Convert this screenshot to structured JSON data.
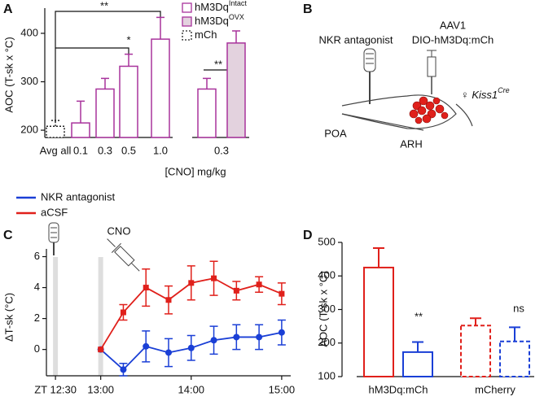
{
  "panel_labels": [
    "A",
    "B",
    "C",
    "D"
  ],
  "chart_data": [
    {
      "type": "bar",
      "ylabel": "AOC (T-sk x °C)",
      "xlabel": "[CNO] mg/kg",
      "categories": [
        "Avg all",
        "0.1",
        "0.3",
        "0.5",
        "1.0",
        "0.3"
      ],
      "series": [
        {
          "name": "hM3Dq",
          "name_sup": "Intact",
          "color": "#a8339c",
          "fill": "#ffffff",
          "values": [
            null,
            215,
            285,
            332,
            388,
            285
          ],
          "errors": [
            null,
            45,
            22,
            25,
            45,
            22
          ]
        },
        {
          "name": "hM3Dq",
          "name_sup": "OVX",
          "color": "#a8339c",
          "fill": "#e3d2de",
          "values": [
            null,
            null,
            null,
            null,
            null,
            380
          ],
          "errors": [
            null,
            null,
            null,
            null,
            null,
            25
          ]
        },
        {
          "name": "mCh",
          "color": "#222222",
          "fill": "#ffffff",
          "dashed": true,
          "values": [
            208,
            null,
            null,
            null,
            null,
            null
          ],
          "errors": [
            12,
            null,
            null,
            null,
            null,
            null
          ]
        }
      ],
      "ylim": [
        185,
        452
      ],
      "yticks": [
        200,
        300,
        400
      ],
      "annotations": [
        "**",
        "*",
        "**"
      ]
    },
    {
      "type": "line",
      "ylabel": "ΔT-sk (°C)",
      "annotations": [
        "CNO"
      ],
      "x": [
        13,
        13.25,
        13.5,
        13.75,
        14,
        14.25,
        14.5,
        14.75,
        15
      ],
      "series": [
        {
          "name": "NKR antagonist",
          "color": "#1a3fd6",
          "marker": "circle",
          "values": [
            0,
            -1.3,
            0.2,
            -0.2,
            0.1,
            0.6,
            0.8,
            0.8,
            1.1
          ],
          "errors": [
            0,
            0.4,
            1.0,
            0.9,
            0.8,
            0.9,
            0.8,
            0.8,
            0.8
          ]
        },
        {
          "name": "aCSF",
          "color": "#e0201b",
          "marker": "square",
          "values": [
            0,
            2.4,
            4.0,
            3.2,
            4.3,
            4.6,
            3.8,
            4.2,
            3.6
          ],
          "errors": [
            0,
            0.5,
            1.2,
            0.9,
            1.1,
            1.1,
            0.6,
            0.5,
            0.7
          ]
        }
      ],
      "xlim": [
        12.4,
        15.1
      ],
      "xticks": [
        {
          "value": 12.5,
          "label": "ZT 12:30"
        },
        {
          "value": 13,
          "label": "13:00"
        },
        {
          "value": 14,
          "label": "14:00"
        },
        {
          "value": 15,
          "label": "15:00"
        }
      ],
      "ylim": [
        -1.7,
        6.5
      ],
      "yticks": [
        0,
        2,
        4,
        6
      ]
    },
    {
      "type": "bar",
      "ylabel": "AOC (T-sk x °C)",
      "categories": [
        "hM3Dq:mCh",
        "mCherry"
      ],
      "dashed": [
        false,
        true
      ],
      "series": [
        {
          "color": "#e0201b",
          "values": [
            425,
            252
          ],
          "errors": [
            58,
            22
          ]
        },
        {
          "color": "#1a3fd6",
          "values": [
            173,
            205
          ],
          "errors": [
            30,
            42
          ]
        }
      ],
      "ylim": [
        100,
        500
      ],
      "yticks": [
        100,
        200,
        300,
        400,
        500
      ],
      "annotations": [
        "**",
        "ns"
      ]
    }
  ],
  "diagram": {
    "probe_label": "NKR antagonist",
    "virus": "AAV1",
    "construct": "DIO-hM3Dq:mCh",
    "mouse_sex": "♀",
    "mouse_line": "Kiss1",
    "mouse_line_sup": "Cre",
    "regions": [
      "POA",
      "ARH"
    ]
  }
}
